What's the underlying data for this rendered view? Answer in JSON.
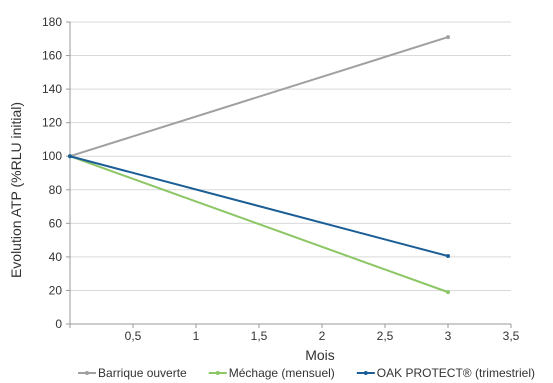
{
  "chart_data": {
    "type": "line",
    "title": "",
    "xlabel": "Mois",
    "ylabel": "Evolution ATP (%RLU initial)",
    "xlim": [
      0,
      3.5
    ],
    "ylim": [
      0,
      180
    ],
    "x_ticks": [
      "",
      "0,5",
      "1",
      "1,5",
      "2",
      "2,5",
      "3",
      "3,5"
    ],
    "y_ticks": [
      "0",
      "20",
      "40",
      "60",
      "80",
      "100",
      "120",
      "140",
      "160",
      "180"
    ],
    "grid": "horizontal",
    "legend_position": "bottom",
    "series": [
      {
        "name": "Barrique ouverte",
        "color": "#a0a0a0",
        "x": [
          0,
          3
        ],
        "y": [
          100,
          171
        ]
      },
      {
        "name": "Méchage (mensuel)",
        "color": "#8cc665",
        "x": [
          0,
          3
        ],
        "y": [
          100,
          19
        ]
      },
      {
        "name": "OAK PROTECT® (trimestriel)",
        "color": "#1b5e96",
        "x": [
          0,
          3
        ],
        "y": [
          100,
          40.5
        ]
      }
    ]
  }
}
